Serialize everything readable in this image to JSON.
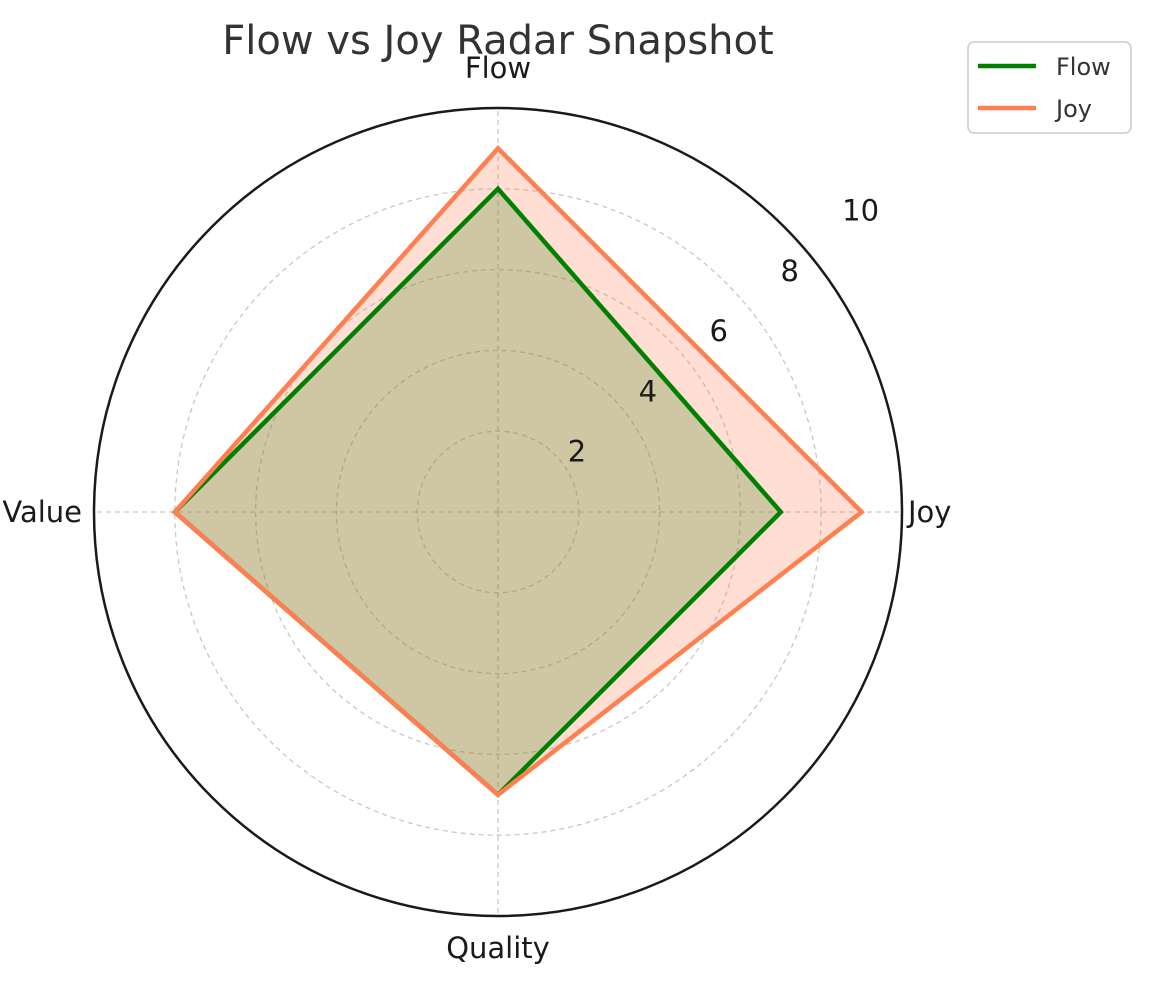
{
  "chart_data": {
    "type": "radar",
    "title": "Flow vs Joy Radar Snapshot",
    "axes": [
      "Flow",
      "Joy",
      "Quality",
      "Value"
    ],
    "rlim": [
      0,
      10
    ],
    "r_ticks": [
      "2",
      "4",
      "6",
      "8",
      "10"
    ],
    "grid": true,
    "legend_position": "top-right",
    "series": [
      {
        "name": "Flow",
        "values": [
          8,
          7,
          7,
          8
        ],
        "color": "#008000",
        "fill": "#008000"
      },
      {
        "name": "Joy",
        "values": [
          9,
          9,
          7,
          8
        ],
        "color": "#ff7f50",
        "fill": "#ff7f50"
      }
    ]
  }
}
